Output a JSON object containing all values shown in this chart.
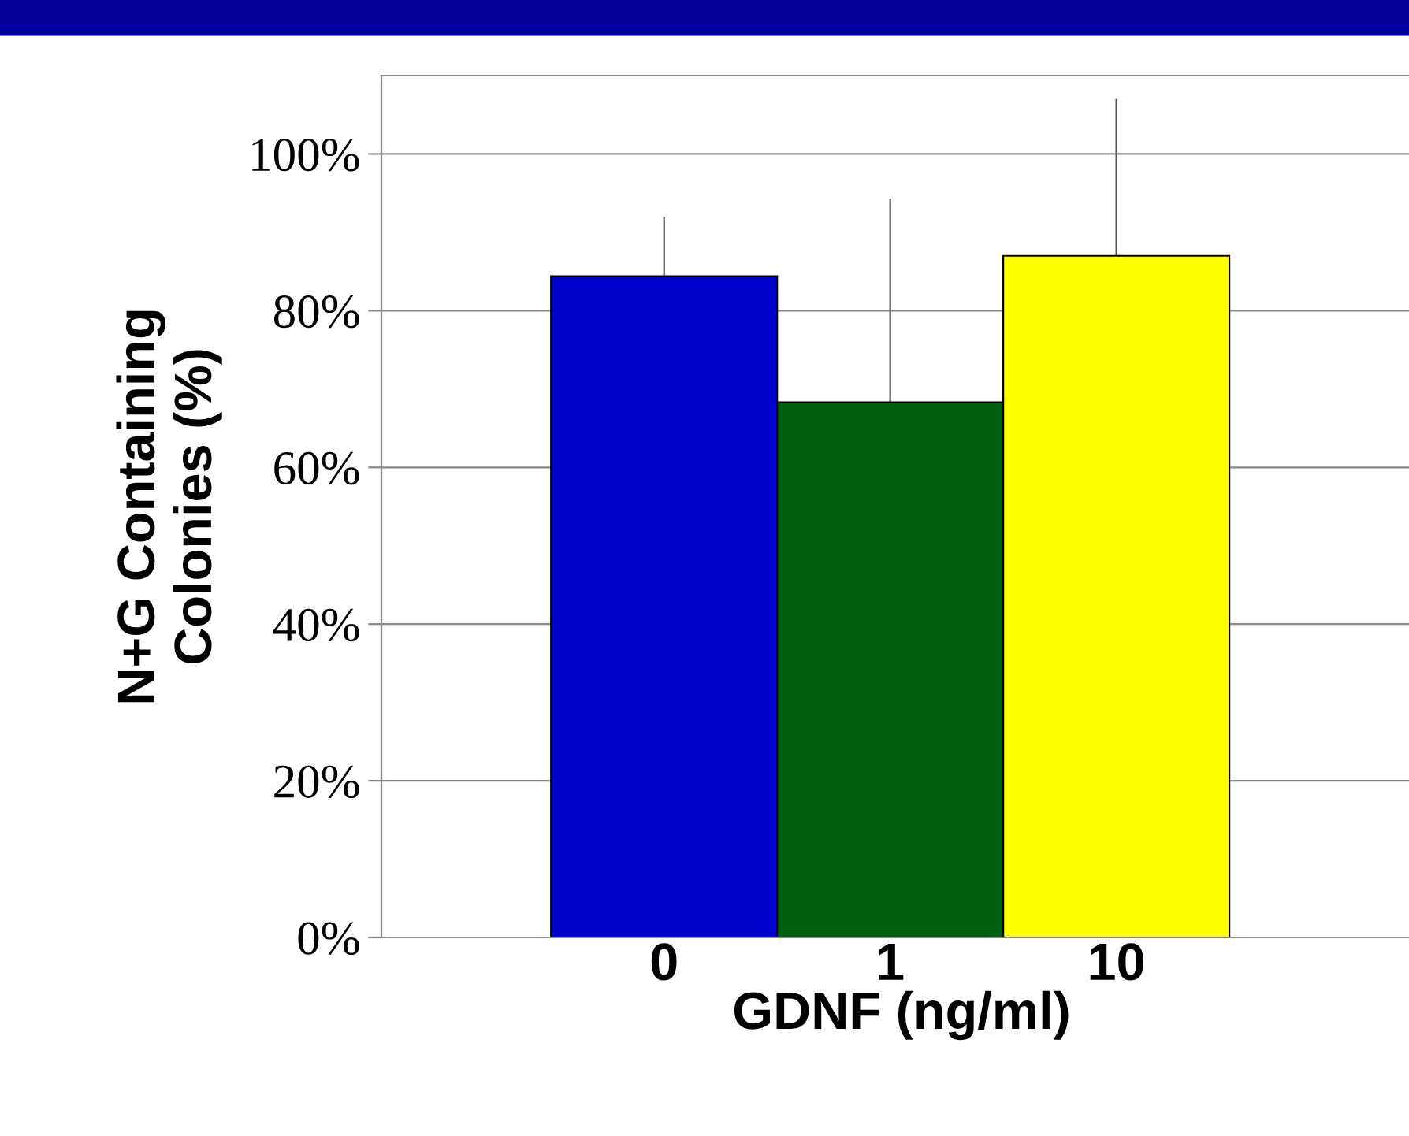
{
  "chart_data": {
    "type": "bar",
    "xlabel": "GDNF (ng/ml)",
    "ylabel": "N+G Containing\nColonies (%)",
    "categories": [
      "0",
      "1",
      "10"
    ],
    "values": [
      84.4,
      68.3,
      87.0
    ],
    "colors": [
      "#0000cc",
      "#006010",
      "#ffff00"
    ],
    "errors": [
      7.6,
      26.0,
      20.0
    ],
    "ylim": [
      0,
      110
    ],
    "yticks": [
      {
        "value": 0,
        "label": "0%"
      },
      {
        "value": 20,
        "label": "20%"
      },
      {
        "value": 40,
        "label": "40%"
      },
      {
        "value": 60,
        "label": "60%"
      },
      {
        "value": 80,
        "label": "80%"
      },
      {
        "value": 100,
        "label": "100%"
      }
    ],
    "grid": "y"
  }
}
